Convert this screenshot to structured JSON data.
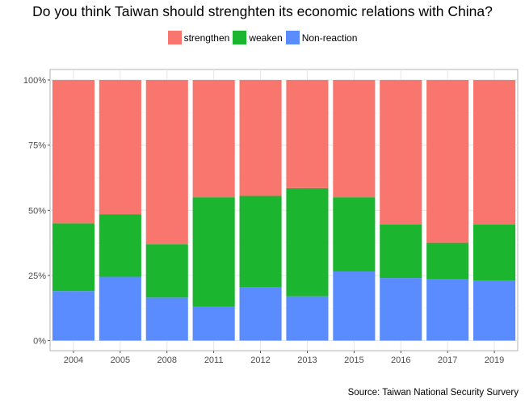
{
  "chart_data": {
    "type": "bar",
    "stacked": true,
    "title": "Do you think Taiwan should strenghten its economic relations with China?",
    "caption": "Source: Taiwan National Security Survery",
    "xlabel": "",
    "ylabel": "",
    "ylim": [
      0,
      1
    ],
    "y_ticks": [
      "0%",
      "25%",
      "50%",
      "75%",
      "100%"
    ],
    "legend_position": "top",
    "grid": true,
    "categories": [
      "2004",
      "2005",
      "2008",
      "2011",
      "2012",
      "2013",
      "2015",
      "2016",
      "2017",
      "2019"
    ],
    "series": [
      {
        "name": "strengthen",
        "color": "#F8766D",
        "values": [
          0.55,
          0.515,
          0.63,
          0.45,
          0.445,
          0.415,
          0.45,
          0.555,
          0.625,
          0.555
        ]
      },
      {
        "name": "weaken",
        "color": "#1CB530",
        "values": [
          0.26,
          0.24,
          0.205,
          0.42,
          0.35,
          0.415,
          0.285,
          0.205,
          0.14,
          0.215
        ]
      },
      {
        "name": "Non-reaction",
        "color": "#5B8CFF",
        "values": [
          0.19,
          0.245,
          0.165,
          0.13,
          0.205,
          0.17,
          0.265,
          0.24,
          0.235,
          0.23
        ]
      }
    ]
  }
}
